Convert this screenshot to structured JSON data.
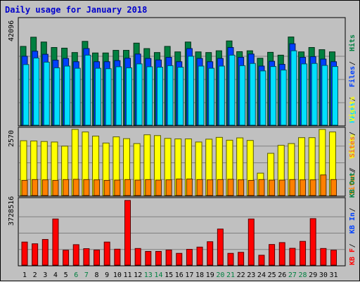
{
  "title": "Daily usage for January 2018",
  "colors": {
    "hits": "#008040",
    "files": "#0040ff",
    "pages": "#00e0ff",
    "visits": "#ffff00",
    "sites": "#ff8000",
    "kb_in": "#ff0000",
    "weekend_label": "#008040",
    "weekday_label": "#000000"
  },
  "chart_data": [
    {
      "type": "bar",
      "panel": "hits-files-pages",
      "ymax_label": "42096",
      "ylim": [
        0,
        42096
      ],
      "categories": [
        "1",
        "2",
        "3",
        "4",
        "5",
        "6",
        "7",
        "8",
        "9",
        "10",
        "11",
        "12",
        "13",
        "14",
        "15",
        "16",
        "17",
        "18",
        "19",
        "20",
        "21",
        "22",
        "23",
        "24",
        "25",
        "26",
        "27",
        "28",
        "29",
        "30",
        "31"
      ],
      "weekend_days": [
        "6",
        "7",
        "13",
        "14",
        "20",
        "21",
        "27",
        "28"
      ],
      "legend": [
        "Pages",
        "Files",
        "Hits"
      ],
      "series": [
        {
          "name": "Hits",
          "values": [
            36000,
            40200,
            38000,
            35500,
            35200,
            33200,
            38300,
            33000,
            33000,
            34200,
            34200,
            37500,
            35000,
            33200,
            36000,
            33500,
            38000,
            33500,
            33200,
            34000,
            38500,
            33600,
            34000,
            30600,
            33300,
            32000,
            40300,
            33500,
            35500,
            34500,
            33500
          ]
        },
        {
          "name": "Files",
          "values": [
            31500,
            33800,
            32400,
            29700,
            30500,
            29000,
            35000,
            29000,
            29000,
            29500,
            30600,
            32500,
            30500,
            29800,
            31000,
            29000,
            35000,
            30500,
            29000,
            30500,
            35500,
            31000,
            32500,
            27000,
            29200,
            27800,
            37200,
            31000,
            31300,
            30200,
            29000
          ]
        },
        {
          "name": "Pages",
          "values": [
            27700,
            30700,
            28800,
            26200,
            27000,
            26000,
            32000,
            26000,
            25800,
            26700,
            26200,
            28000,
            26700,
            26500,
            27200,
            26500,
            31500,
            27000,
            26000,
            27000,
            32000,
            27200,
            28200,
            24800,
            26800,
            25200,
            34000,
            28000,
            28200,
            27300,
            26800
          ]
        }
      ]
    },
    {
      "type": "bar",
      "panel": "visits-sites",
      "ymax_label": "2570",
      "ylim": [
        0,
        2570
      ],
      "categories": [
        "1",
        "2",
        "3",
        "4",
        "5",
        "6",
        "7",
        "8",
        "9",
        "10",
        "11",
        "12",
        "13",
        "14",
        "15",
        "16",
        "17",
        "18",
        "19",
        "20",
        "21",
        "22",
        "23",
        "24",
        "25",
        "26",
        "27",
        "28",
        "29",
        "30",
        "31"
      ],
      "legend": [
        "Sites",
        "Visits"
      ],
      "series": [
        {
          "name": "Visits",
          "values": [
            2130,
            2120,
            2100,
            2080,
            1920,
            2570,
            2470,
            2310,
            2040,
            2280,
            2210,
            2020,
            2360,
            2330,
            2220,
            2200,
            2200,
            2080,
            2190,
            2260,
            2150,
            2240,
            2140,
            870,
            1640,
            1950,
            2020,
            2250,
            2250,
            2570,
            2470
          ]
        },
        {
          "name": "Sites",
          "values": [
            590,
            620,
            610,
            590,
            620,
            630,
            620,
            610,
            590,
            600,
            620,
            600,
            620,
            600,
            610,
            640,
            640,
            620,
            610,
            620,
            630,
            610,
            590,
            620,
            600,
            600,
            620,
            610,
            610,
            800,
            620
          ]
        }
      ]
    },
    {
      "type": "bar",
      "panel": "kbytes",
      "ymax_label": "3728516",
      "ylim": [
        0,
        3728516
      ],
      "categories": [
        "1",
        "2",
        "3",
        "4",
        "5",
        "6",
        "7",
        "8",
        "9",
        "10",
        "11",
        "12",
        "13",
        "14",
        "15",
        "16",
        "17",
        "18",
        "19",
        "20",
        "21",
        "22",
        "23",
        "24",
        "25",
        "26",
        "27",
        "28",
        "29",
        "30",
        "31"
      ],
      "legend": [
        "KB F",
        "KB In",
        "KB Out",
        "Sites",
        "Visits"
      ],
      "series": [
        {
          "name": "KB F",
          "values": [
            1330000,
            1230000,
            1480000,
            2660000,
            860000,
            1180000,
            950000,
            870000,
            1330000,
            920000,
            3728516,
            960000,
            790000,
            790000,
            870000,
            680000,
            910000,
            1040000,
            1350000,
            2080000,
            680000,
            740000,
            2660000,
            570000,
            1190000,
            1300000,
            970000,
            1370000,
            2680000,
            960000,
            860000
          ]
        }
      ]
    }
  ]
}
